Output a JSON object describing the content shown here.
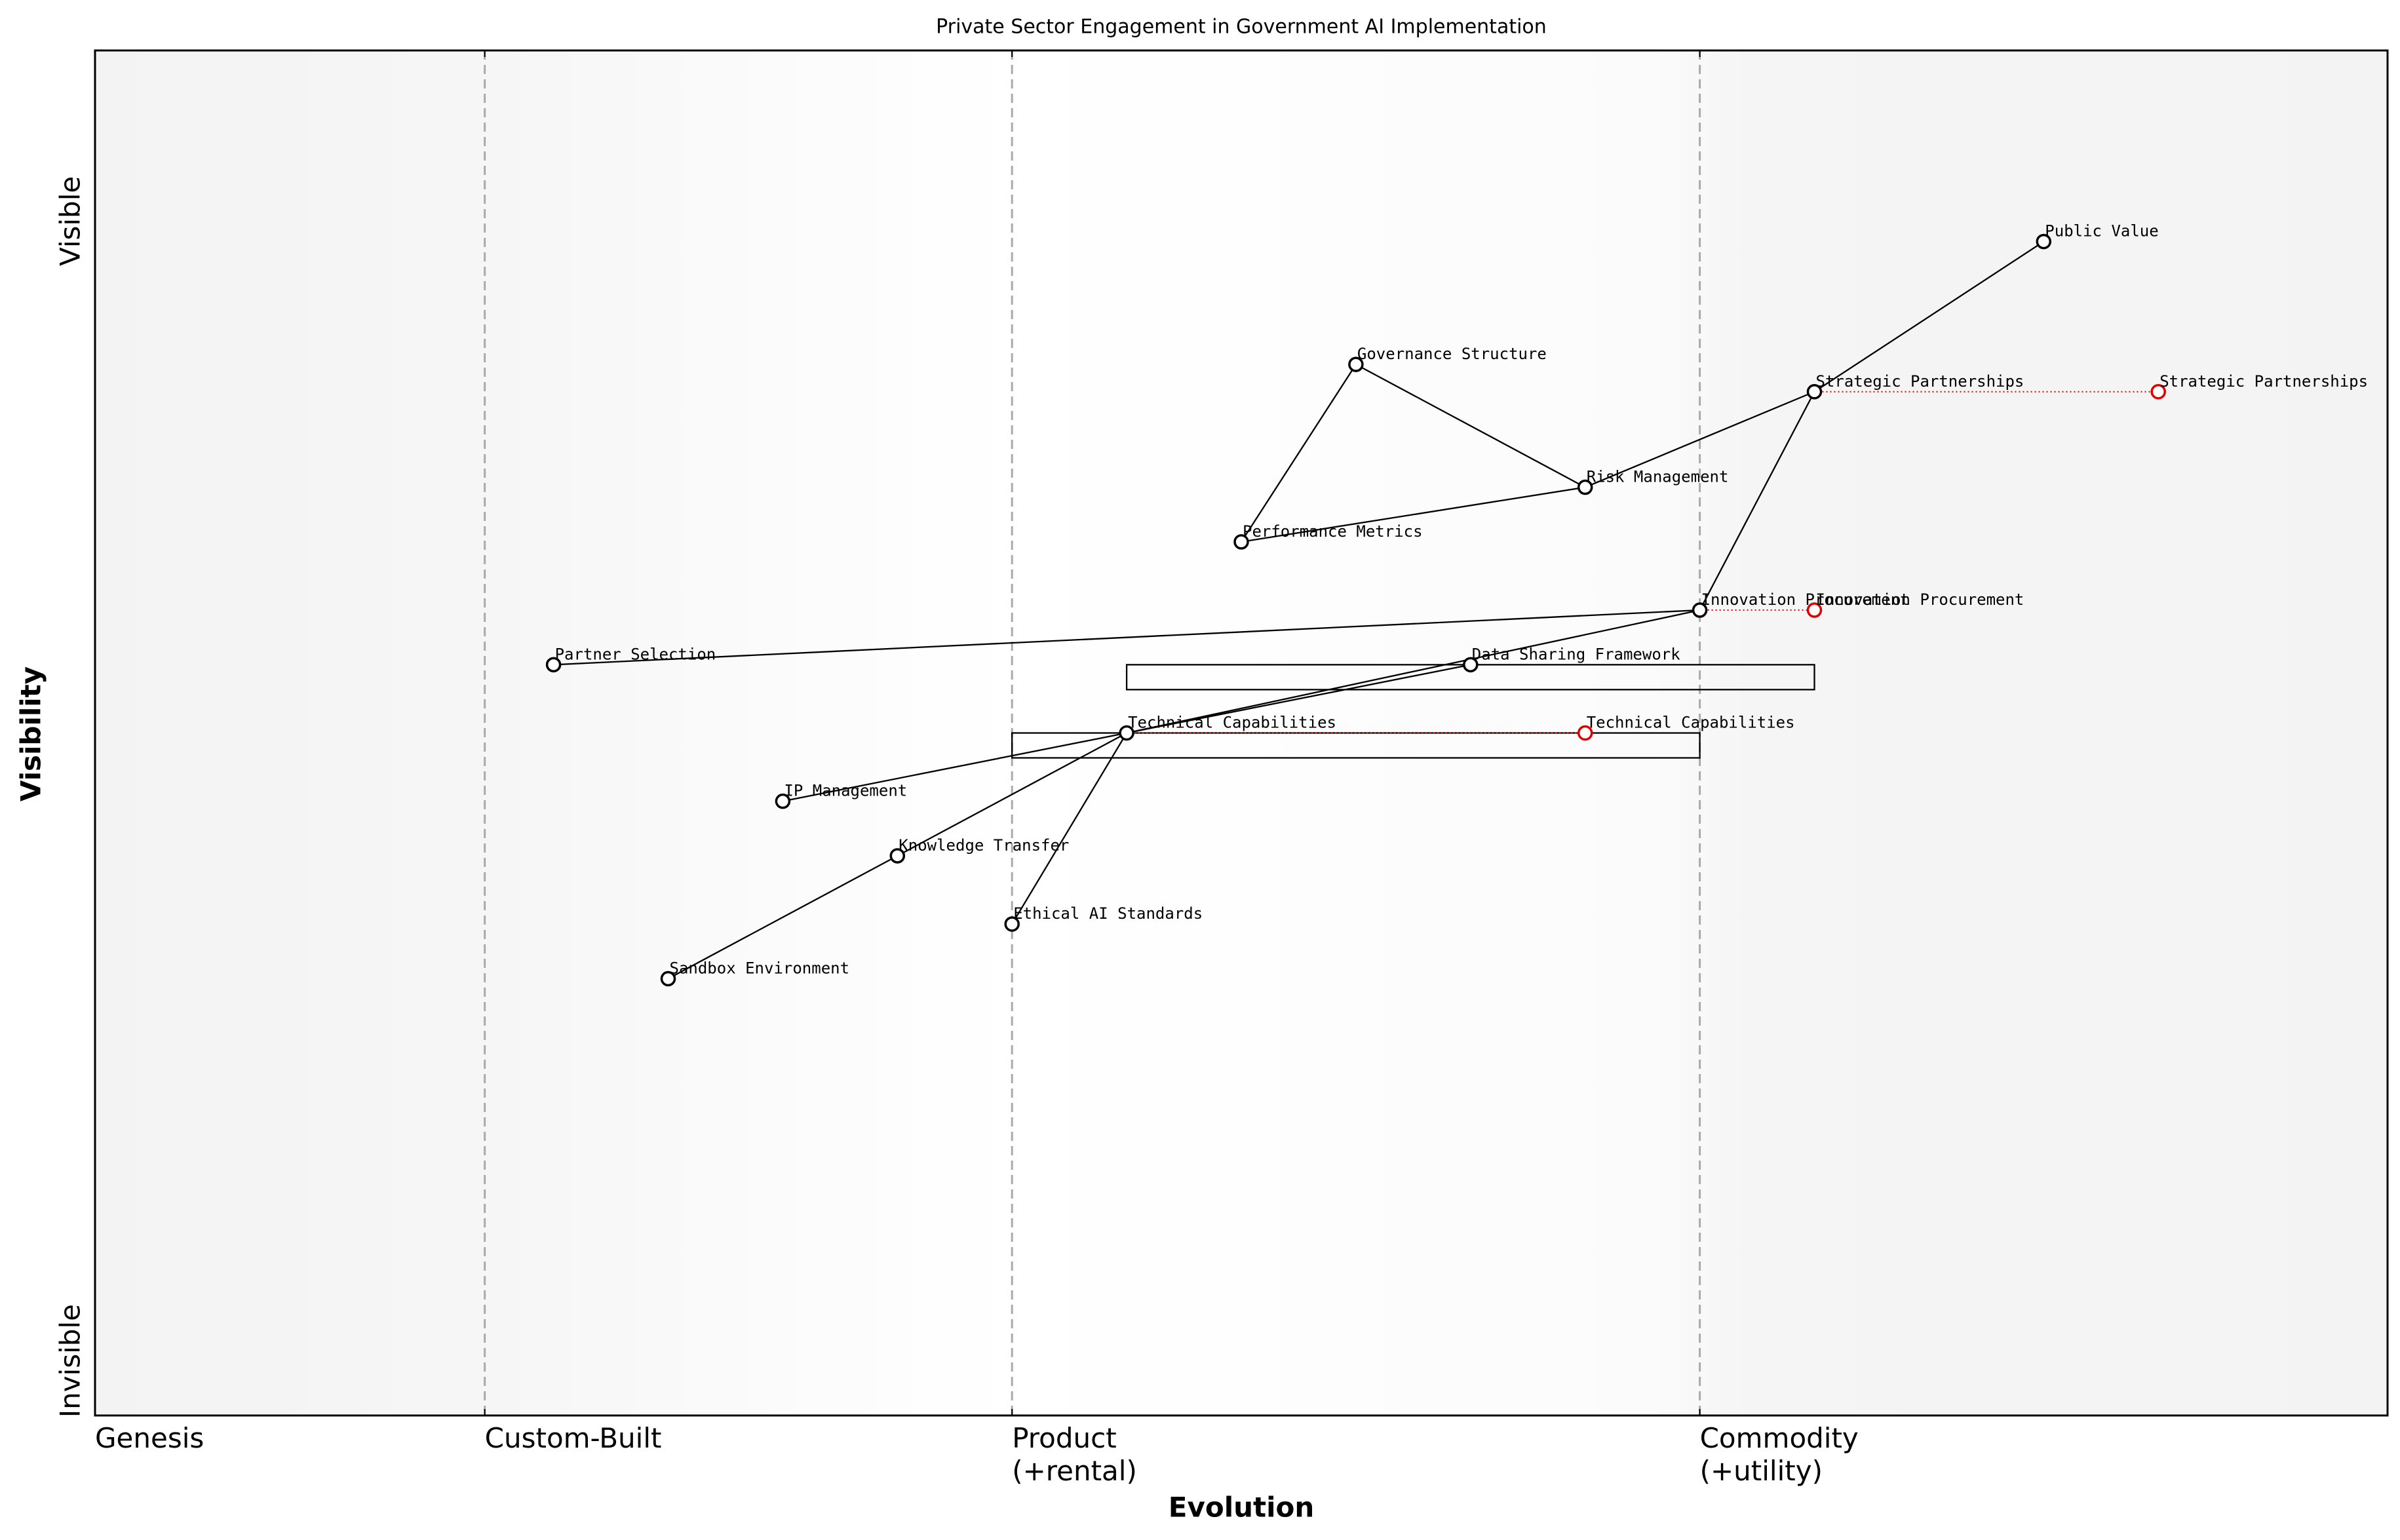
{
  "chart_data": {
    "type": "wardley",
    "title": "Private Sector Engagement in Government AI Implementation",
    "x_label": "Evolution",
    "y_label": "Visibility",
    "xlim": [
      0,
      1
    ],
    "ylim": [
      0,
      1
    ],
    "xticks": [
      {
        "value": 0,
        "label": "Genesis"
      },
      {
        "value": 0.17,
        "label": "Custom-Built"
      },
      {
        "value": 0.4,
        "label": "Product\n(+rental)"
      },
      {
        "value": 0.7,
        "label": "Commodity\n(+utility)"
      }
    ],
    "yticks": [
      {
        "value": 0.04,
        "label": "Invisible"
      },
      {
        "value": 0.875,
        "label": "Visible"
      }
    ],
    "components": [
      {
        "name": "Public Value",
        "evolution": 0.85,
        "visibility": 0.86
      },
      {
        "name": "Governance Structure",
        "evolution": 0.55,
        "visibility": 0.77
      },
      {
        "name": "Strategic Partnerships",
        "evolution": 0.75,
        "visibility": 0.75
      },
      {
        "name": "Risk Management",
        "evolution": 0.65,
        "visibility": 0.68
      },
      {
        "name": "Performance Metrics",
        "evolution": 0.5,
        "visibility": 0.64
      },
      {
        "name": "Innovation Procurement",
        "evolution": 0.7,
        "visibility": 0.59
      },
      {
        "name": "Partner Selection",
        "evolution": 0.2,
        "visibility": 0.55
      },
      {
        "name": "Data Sharing Framework",
        "evolution": 0.6,
        "visibility": 0.55
      },
      {
        "name": "Technical Capabilities",
        "evolution": 0.45,
        "visibility": 0.5
      },
      {
        "name": "IP Management",
        "evolution": 0.3,
        "visibility": 0.45
      },
      {
        "name": "Knowledge Transfer",
        "evolution": 0.35,
        "visibility": 0.41
      },
      {
        "name": "Ethical AI Standards",
        "evolution": 0.4,
        "visibility": 0.36
      },
      {
        "name": "Sandbox Environment",
        "evolution": 0.25,
        "visibility": 0.32
      }
    ],
    "links": [
      [
        "Public Value",
        "Strategic Partnerships"
      ],
      [
        "Strategic Partnerships",
        "Risk Management"
      ],
      [
        "Strategic Partnerships",
        "Innovation Procurement"
      ],
      [
        "Governance Structure",
        "Risk Management"
      ],
      [
        "Governance Structure",
        "Performance Metrics"
      ],
      [
        "Performance Metrics",
        "Risk Management"
      ],
      [
        "Innovation Procurement",
        "Partner Selection"
      ],
      [
        "Innovation Procurement",
        "Technical Capabilities"
      ],
      [
        "Data Sharing Framework",
        "Technical Capabilities"
      ],
      [
        "Technical Capabilities",
        "IP Management"
      ],
      [
        "Technical Capabilities",
        "Knowledge Transfer"
      ],
      [
        "Technical Capabilities",
        "Ethical AI Standards"
      ],
      [
        "Knowledge Transfer",
        "Sandbox Environment"
      ]
    ],
    "evolutions": [
      {
        "name": "Strategic Partnerships",
        "evolution": 0.9
      },
      {
        "name": "Innovation Procurement",
        "evolution": 0.75
      },
      {
        "name": "Technical Capabilities",
        "evolution": 0.65
      }
    ],
    "pipelines": [
      {
        "name": "Data Sharing Framework",
        "start": 0.45,
        "end": 0.75
      },
      {
        "name": "Technical Capabilities",
        "start": 0.4,
        "end": 0.7
      }
    ],
    "component_color": "#000000",
    "evolution_color": "#e00000"
  }
}
